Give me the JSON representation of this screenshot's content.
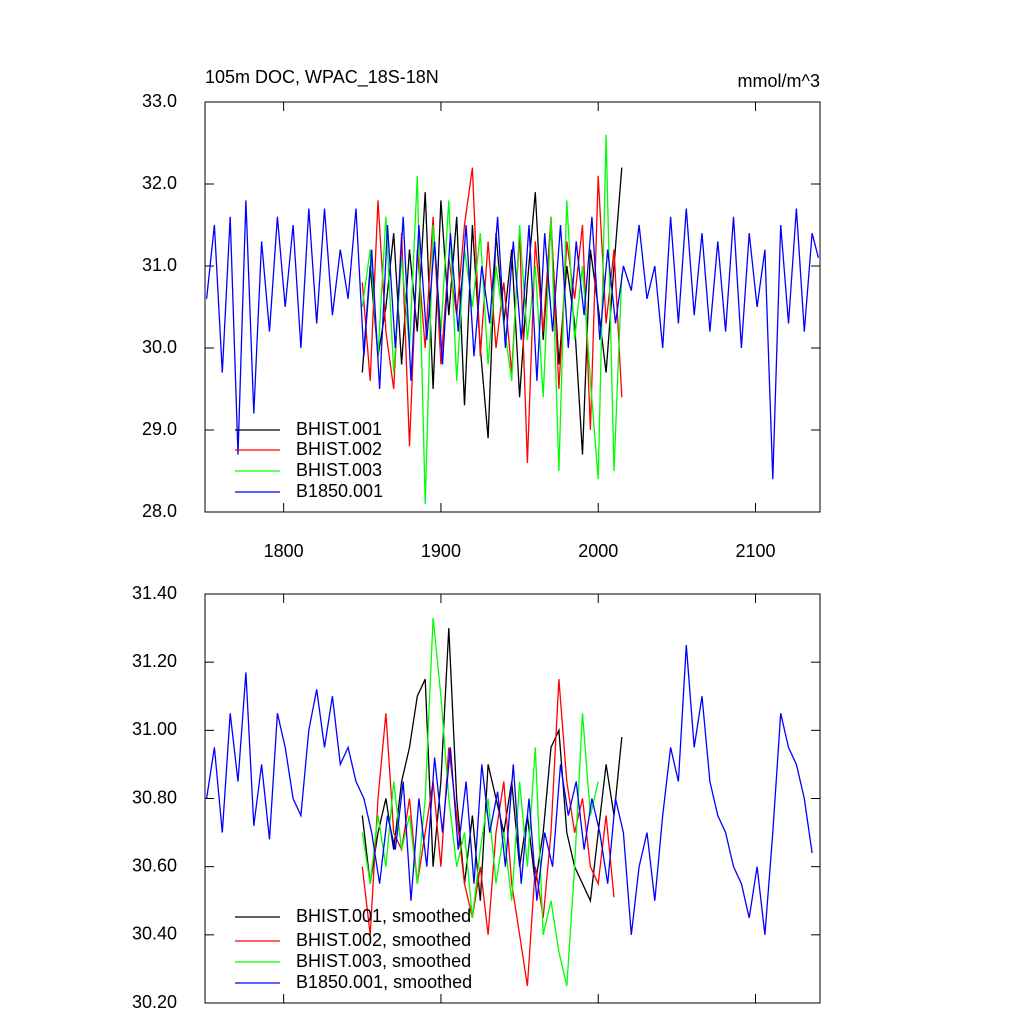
{
  "chart_data": [
    {
      "type": "line",
      "title": "105m DOC, WPAC_18S-18N",
      "units": "mmol/m^3",
      "xlim": [
        1750,
        2141
      ],
      "xticks": [
        1800,
        1900,
        2000,
        2100
      ],
      "ylim": [
        28,
        33
      ],
      "yticks": [
        {
          "value": 28,
          "label": "28.0"
        },
        {
          "value": 29,
          "label": "29.0"
        },
        {
          "value": 30,
          "label": "30.0"
        },
        {
          "value": 31,
          "label": "31.0"
        },
        {
          "value": 32,
          "label": "32.0"
        },
        {
          "value": 33,
          "label": "33.0"
        }
      ],
      "series": [
        {
          "name": "BHIST.001",
          "color": "#000000",
          "x": [
            1850,
            1855,
            1860,
            1865,
            1870,
            1875,
            1880,
            1885,
            1890,
            1895,
            1900,
            1905,
            1910,
            1915,
            1920,
            1925,
            1930,
            1935,
            1940,
            1945,
            1950,
            1955,
            1960,
            1965,
            1970,
            1975,
            1980,
            1985,
            1990,
            1995,
            2000,
            2005,
            2010,
            2015
          ],
          "values": [
            29.7,
            31.0,
            29.9,
            30.5,
            31.4,
            29.8,
            31.2,
            30.2,
            31.9,
            29.5,
            31.8,
            30.4,
            31.6,
            29.3,
            31.5,
            30.0,
            28.9,
            31.4,
            30.3,
            31.2,
            29.4,
            30.8,
            31.9,
            30.1,
            31.5,
            29.8,
            31.0,
            30.3,
            28.7,
            31.2,
            30.5,
            29.7,
            31.0,
            32.2
          ]
        },
        {
          "name": "BHIST.002",
          "color": "#ff0000",
          "x": [
            1850,
            1855,
            1860,
            1865,
            1870,
            1875,
            1880,
            1885,
            1890,
            1895,
            1900,
            1905,
            1910,
            1915,
            1920,
            1925,
            1930,
            1935,
            1940,
            1945,
            1950,
            1955,
            1960,
            1965,
            1970,
            1975,
            1980,
            1985,
            1990,
            1995,
            2000,
            2005,
            2010,
            2015
          ],
          "values": [
            30.8,
            29.6,
            31.8,
            30.2,
            29.5,
            31.4,
            28.8,
            31.2,
            30.0,
            31.6,
            29.8,
            31.1,
            30.4,
            31.5,
            32.2,
            29.9,
            31.3,
            30.0,
            30.8,
            29.7,
            31.4,
            28.6,
            31.3,
            30.2,
            31.6,
            29.5,
            31.3,
            30.6,
            31.5,
            29.0,
            32.1,
            30.3,
            31.2,
            29.4
          ]
        },
        {
          "name": "BHIST.003",
          "color": "#00ff00",
          "x": [
            1850,
            1855,
            1860,
            1865,
            1870,
            1875,
            1880,
            1885,
            1890,
            1895,
            1900,
            1905,
            1910,
            1915,
            1920,
            1925,
            1930,
            1935,
            1940,
            1945,
            1950,
            1955,
            1960,
            1965,
            1970,
            1975,
            1980,
            1985,
            1990,
            1995,
            2000,
            2005,
            2010,
            2015
          ],
          "values": [
            30.5,
            31.2,
            29.9,
            31.6,
            29.7,
            31.1,
            30.0,
            32.1,
            28.1,
            31.5,
            30.2,
            31.8,
            29.6,
            31.2,
            30.5,
            31.4,
            29.8,
            31.0,
            30.3,
            29.6,
            31.5,
            30.1,
            31.0,
            29.4,
            31.6,
            28.5,
            31.8,
            30.1,
            31.0,
            29.6,
            28.4,
            32.6,
            28.5,
            30.9
          ]
        },
        {
          "name": "B1850.001",
          "color": "#0000ff",
          "x": [
            1751,
            1756,
            1761,
            1766,
            1771,
            1776,
            1781,
            1786,
            1791,
            1796,
            1801,
            1806,
            1811,
            1816,
            1821,
            1826,
            1831,
            1836,
            1841,
            1846,
            1851,
            1856,
            1861,
            1866,
            1871,
            1876,
            1881,
            1886,
            1891,
            1896,
            1901,
            1906,
            1911,
            1916,
            1921,
            1926,
            1931,
            1936,
            1941,
            1946,
            1951,
            1956,
            1961,
            1966,
            1971,
            1976,
            1981,
            1986,
            1991,
            1996,
            2001,
            2006,
            2011,
            2016,
            2021,
            2026,
            2031,
            2036,
            2041,
            2046,
            2051,
            2056,
            2061,
            2066,
            2071,
            2076,
            2081,
            2086,
            2091,
            2096,
            2101,
            2106,
            2111,
            2116,
            2121,
            2126,
            2131,
            2136,
            2140
          ],
          "values": [
            30.6,
            31.5,
            29.7,
            31.6,
            28.7,
            31.8,
            29.2,
            31.3,
            30.2,
            31.6,
            30.5,
            31.5,
            30.0,
            31.7,
            30.3,
            31.7,
            30.4,
            31.2,
            30.6,
            31.7,
            29.9,
            31.2,
            29.5,
            31.5,
            30.0,
            31.6,
            29.6,
            31.5,
            30.1,
            31.3,
            29.8,
            31.4,
            30.2,
            31.5,
            29.9,
            31.0,
            30.3,
            31.6,
            30.0,
            31.3,
            30.1,
            31.5,
            29.6,
            31.4,
            30.2,
            31.5,
            30.0,
            31.3,
            30.4,
            31.6,
            30.1,
            31.2,
            30.3,
            31.0,
            30.7,
            31.5,
            30.6,
            31.0,
            30.0,
            31.6,
            30.3,
            31.7,
            30.4,
            31.4,
            30.2,
            31.3,
            30.2,
            31.6,
            30.0,
            31.4,
            30.5,
            31.2,
            28.4,
            31.5,
            30.3,
            31.7,
            30.2,
            31.4,
            31.1
          ]
        }
      ]
    },
    {
      "type": "line",
      "xlim": [
        1750,
        2141
      ],
      "xticks": [
        1800,
        1900,
        2000,
        2100
      ],
      "ylim": [
        30.2,
        31.4
      ],
      "yticks": [
        {
          "value": 30.2,
          "label": "30.20"
        },
        {
          "value": 30.4,
          "label": "30.40"
        },
        {
          "value": 30.6,
          "label": "30.60"
        },
        {
          "value": 30.8,
          "label": "30.80"
        },
        {
          "value": 31.0,
          "label": "31.00"
        },
        {
          "value": 31.2,
          "label": "31.20"
        },
        {
          "value": 31.4,
          "label": "31.40"
        }
      ],
      "series": [
        {
          "name": "BHIST.001, smoothed",
          "color": "#000000",
          "x": [
            1850,
            1855,
            1860,
            1865,
            1870,
            1875,
            1880,
            1885,
            1890,
            1895,
            1900,
            1905,
            1910,
            1915,
            1920,
            1925,
            1930,
            1935,
            1940,
            1945,
            1950,
            1955,
            1960,
            1965,
            1970,
            1975,
            1980,
            1985,
            1990,
            1995,
            2000,
            2005,
            2010,
            2015
          ],
          "values": [
            30.75,
            30.55,
            30.7,
            30.8,
            30.65,
            30.85,
            30.95,
            31.1,
            31.15,
            30.6,
            30.85,
            31.3,
            30.8,
            30.55,
            30.75,
            30.5,
            30.9,
            30.8,
            30.7,
            30.85,
            30.6,
            30.75,
            30.55,
            30.7,
            30.95,
            31.0,
            30.7,
            30.6,
            30.55,
            30.5,
            30.7,
            30.9,
            30.75,
            30.98
          ]
        },
        {
          "name": "BHIST.002, smoothed",
          "color": "#ff0000",
          "x": [
            1850,
            1855,
            1860,
            1865,
            1870,
            1875,
            1880,
            1885,
            1890,
            1895,
            1900,
            1905,
            1910,
            1915,
            1920,
            1925,
            1930,
            1935,
            1940,
            1945,
            1950,
            1955,
            1960,
            1965,
            1970,
            1975,
            1980,
            1985,
            1990,
            1995,
            2000,
            2005,
            2010,
            2015
          ],
          "values": [
            30.6,
            30.4,
            30.8,
            31.05,
            30.7,
            30.65,
            30.8,
            30.55,
            30.7,
            30.85,
            30.6,
            30.95,
            30.75,
            30.55,
            30.45,
            30.6,
            30.4,
            30.7,
            30.85,
            30.55,
            30.4,
            30.25,
            30.6,
            30.45,
            30.7,
            31.15,
            30.85,
            30.7,
            30.8,
            30.6,
            30.55,
            30.75,
            30.51,
            null
          ]
        },
        {
          "name": "BHIST.003, smoothed",
          "color": "#00ff00",
          "x": [
            1850,
            1855,
            1860,
            1865,
            1870,
            1875,
            1880,
            1885,
            1890,
            1895,
            1900,
            1905,
            1910,
            1915,
            1920,
            1925,
            1930,
            1935,
            1940,
            1945,
            1950,
            1955,
            1960,
            1965,
            1970,
            1975,
            1980,
            1985,
            1990,
            1995,
            2000,
            2005,
            2010,
            2015
          ],
          "values": [
            30.7,
            30.55,
            30.75,
            30.6,
            30.85,
            30.65,
            30.75,
            30.55,
            30.8,
            31.33,
            31.1,
            30.8,
            30.6,
            30.7,
            30.45,
            30.65,
            30.8,
            30.55,
            30.7,
            30.5,
            30.85,
            30.6,
            30.95,
            30.4,
            30.5,
            30.35,
            30.25,
            30.6,
            31.05,
            30.75,
            30.85,
            null,
            null,
            null
          ]
        },
        {
          "name": "B1850.001, smoothed",
          "color": "#0000ff",
          "x": [
            1751,
            1756,
            1761,
            1766,
            1771,
            1776,
            1781,
            1786,
            1791,
            1796,
            1801,
            1806,
            1811,
            1816,
            1821,
            1826,
            1831,
            1836,
            1841,
            1846,
            1851,
            1856,
            1861,
            1866,
            1871,
            1876,
            1881,
            1886,
            1891,
            1896,
            1901,
            1906,
            1911,
            1916,
            1921,
            1926,
            1931,
            1936,
            1941,
            1946,
            1951,
            1956,
            1961,
            1966,
            1971,
            1976,
            1981,
            1986,
            1991,
            1996,
            2001,
            2006,
            2011,
            2016,
            2021,
            2026,
            2031,
            2036,
            2041,
            2046,
            2051,
            2056,
            2061,
            2066,
            2071,
            2076,
            2081,
            2086,
            2091,
            2096,
            2101,
            2106,
            2111,
            2116,
            2121,
            2126,
            2131,
            2136
          ],
          "values": [
            30.8,
            30.95,
            30.7,
            31.05,
            30.85,
            31.17,
            30.72,
            30.9,
            30.68,
            31.05,
            30.95,
            30.8,
            30.75,
            31.0,
            31.12,
            30.95,
            31.1,
            30.9,
            30.95,
            30.85,
            30.8,
            30.7,
            30.55,
            30.75,
            30.65,
            30.85,
            30.5,
            30.8,
            30.6,
            30.92,
            30.7,
            30.95,
            30.65,
            30.85,
            30.55,
            30.9,
            30.7,
            30.82,
            30.6,
            30.9,
            30.55,
            30.8,
            30.5,
            30.7,
            30.6,
            30.9,
            30.75,
            30.85,
            30.65,
            30.8,
            30.7,
            30.55,
            30.8,
            30.7,
            30.4,
            30.6,
            30.7,
            30.5,
            30.75,
            30.95,
            30.85,
            31.25,
            30.95,
            31.1,
            30.85,
            30.75,
            30.7,
            30.6,
            30.55,
            30.45,
            30.6,
            30.4,
            30.7,
            31.05,
            30.95,
            30.9,
            30.8,
            30.64
          ]
        }
      ]
    }
  ]
}
